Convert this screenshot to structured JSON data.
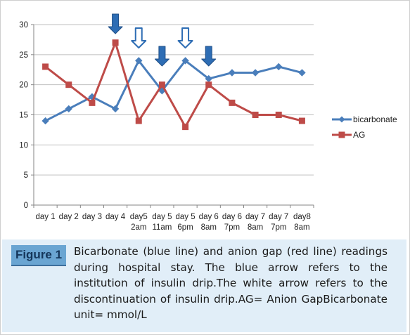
{
  "colors": {
    "bicarbonate": "#4a7ebb",
    "ag": "#be4b48",
    "blue_arrow": "#2e6db4",
    "white_arrow_fill": "#ffffff",
    "white_arrow_stroke": "#2e6db4",
    "caption_bg": "#e1eef8",
    "label_bg": "#6aa5d2"
  },
  "chart_data": {
    "type": "line",
    "categories": [
      [
        "day 1"
      ],
      [
        "day 2"
      ],
      [
        "day 3"
      ],
      [
        "day 4"
      ],
      [
        "day5",
        "2am"
      ],
      [
        "day 5",
        "11am"
      ],
      [
        "day 5",
        "6pm"
      ],
      [
        "day 6",
        "8am"
      ],
      [
        "day 6",
        "7pm"
      ],
      [
        "day 7",
        "8am"
      ],
      [
        "day 7",
        "7pm"
      ],
      [
        "day8",
        "8am"
      ]
    ],
    "series": [
      {
        "name": "bicarbonate",
        "values": [
          14,
          16,
          18,
          16,
          24,
          19,
          24,
          21,
          22,
          22,
          23,
          22
        ],
        "marker": "diamond",
        "color_key": "bicarbonate"
      },
      {
        "name": "AG",
        "values": [
          23,
          20,
          17,
          27,
          14,
          20,
          13,
          20,
          17,
          15,
          15,
          14
        ],
        "marker": "square",
        "color_key": "ag"
      }
    ],
    "ylim": [
      0,
      30
    ],
    "yticks": [
      0,
      5,
      10,
      15,
      20,
      25,
      30
    ],
    "grid": "horizontal",
    "legend_position": "right",
    "arrows": [
      {
        "category_index": 3,
        "style": "blue"
      },
      {
        "category_index": 4,
        "style": "white"
      },
      {
        "category_index": 5,
        "style": "blue"
      },
      {
        "category_index": 6,
        "style": "white"
      },
      {
        "category_index": 7,
        "style": "blue"
      }
    ]
  },
  "caption": {
    "label": "Figure 1",
    "text": "Bicarbonate (blue line) and anion gap (red line) readings during hospital stay. The blue arrow refers to the institution of insulin drip.The white arrow refers to the discontinuation of insulin drip.AG= Anion GapBicarbonate unit= mmol/L"
  }
}
